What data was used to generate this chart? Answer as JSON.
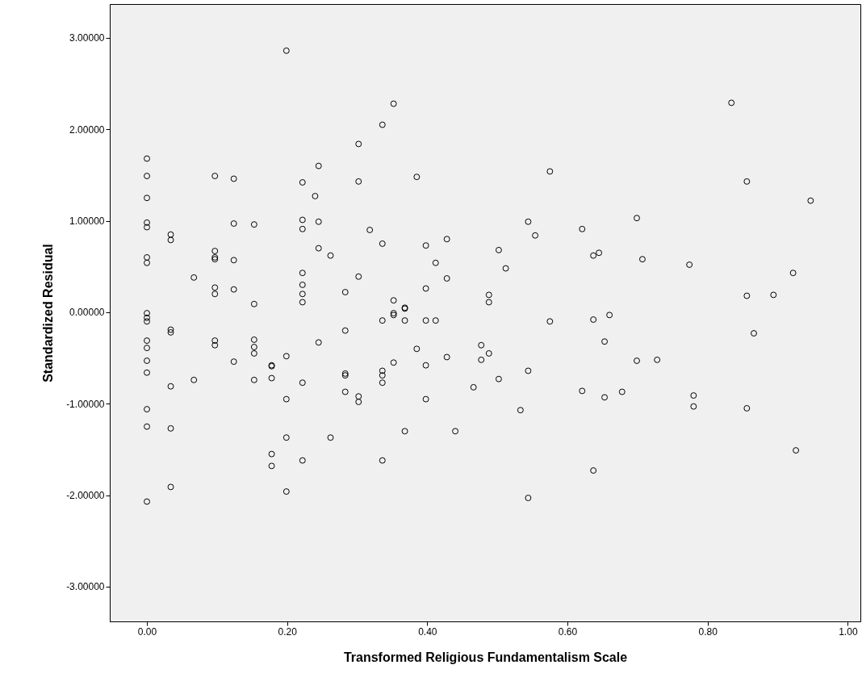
{
  "chart_data": {
    "type": "scatter",
    "xlabel": "Transformed Religious Fundamentalism Scale",
    "ylabel": "Standardized Residual",
    "xlim": [
      -0.053,
      1.018
    ],
    "ylim": [
      -3.38,
      3.37
    ],
    "xticks": [
      {
        "value": 0,
        "label": "0.00"
      },
      {
        "value": 0.2,
        "label": "0.20"
      },
      {
        "value": 0.4,
        "label": "0.40"
      },
      {
        "value": 0.6,
        "label": "0.60"
      },
      {
        "value": 0.8,
        "label": "0.80"
      },
      {
        "value": 1,
        "label": "1.00"
      }
    ],
    "yticks": [
      {
        "value": -3,
        "label": "-3.00000"
      },
      {
        "value": -2,
        "label": "-2.00000"
      },
      {
        "value": -1,
        "label": "-1.00000"
      },
      {
        "value": 0,
        "label": "0.00000"
      },
      {
        "value": 1,
        "label": "1.00000"
      },
      {
        "value": 2,
        "label": "2.00000"
      },
      {
        "value": 3,
        "label": "3.00000"
      }
    ],
    "grid": false,
    "marker": "circle",
    "series": [
      {
        "color": "#000000",
        "x": [
          0,
          0,
          0,
          0,
          0,
          0,
          0,
          0,
          0,
          0,
          0,
          0,
          0,
          0,
          0,
          0,
          0,
          0.034,
          0.034,
          0.034,
          0.034,
          0.034,
          0.034,
          0.034,
          0.067,
          0.067,
          0.097,
          0.097,
          0.097,
          0.097,
          0.097,
          0.097,
          0.097,
          0.097,
          0.124,
          0.124,
          0.124,
          0.124,
          0.124,
          0.153,
          0.153,
          0.153,
          0.153,
          0.153,
          0.153,
          0.178,
          0.178,
          0.178,
          0.178,
          0.178,
          0.199,
          0.199,
          0.199,
          0.199,
          0.199,
          0.222,
          0.222,
          0.222,
          0.222,
          0.222,
          0.222,
          0.222,
          0.222,
          0.222,
          0.24,
          0.245,
          0.245,
          0.245,
          0.245,
          0.262,
          0.262,
          0.283,
          0.283,
          0.283,
          0.283,
          0.283,
          0.302,
          0.302,
          0.302,
          0.302,
          0.302,
          0.318,
          0.336,
          0.336,
          0.336,
          0.336,
          0.336,
          0.336,
          0.336,
          0.352,
          0.352,
          0.352,
          0.352,
          0.352,
          0.368,
          0.368,
          0.368,
          0.368,
          0.385,
          0.385,
          0.398,
          0.398,
          0.398,
          0.398,
          0.398,
          0.412,
          0.412,
          0.428,
          0.428,
          0.428,
          0.44,
          0.466,
          0.477,
          0.477,
          0.488,
          0.488,
          0.488,
          0.502,
          0.502,
          0.512,
          0.533,
          0.544,
          0.544,
          0.544,
          0.554,
          0.575,
          0.575,
          0.621,
          0.621,
          0.637,
          0.637,
          0.637,
          0.645,
          0.653,
          0.653,
          0.66,
          0.678,
          0.699,
          0.699,
          0.707,
          0.728,
          0.774,
          0.78,
          0.78,
          0.834,
          0.856,
          0.856,
          0.856,
          0.866,
          0.894,
          0.922,
          0.926,
          0.947
        ],
        "values": [
          1.68,
          1.49,
          1.25,
          0.98,
          0.93,
          0.6,
          0.54,
          -0.01,
          -0.06,
          -0.1,
          -0.31,
          -0.39,
          -0.53,
          -0.66,
          -1.06,
          -1.25,
          -2.07,
          0.85,
          0.79,
          -0.19,
          -0.22,
          -0.81,
          -1.27,
          -1.91,
          0.38,
          -0.74,
          1.49,
          0.67,
          0.58,
          0.6,
          0.27,
          0.2,
          -0.31,
          -0.36,
          1.46,
          0.97,
          0.57,
          0.25,
          -0.54,
          0.96,
          0.09,
          -0.3,
          -0.38,
          -0.45,
          -0.74,
          -0.58,
          -0.59,
          -0.72,
          -1.55,
          -1.68,
          2.86,
          -0.48,
          -0.95,
          -1.37,
          -1.96,
          1.42,
          1.01,
          0.91,
          0.43,
          0.3,
          0.2,
          0.11,
          -0.77,
          -1.62,
          1.27,
          1.6,
          0.99,
          0.7,
          -0.33,
          0.62,
          -1.37,
          0.22,
          -0.2,
          -0.67,
          -0.69,
          -0.87,
          1.84,
          1.43,
          0.39,
          -0.92,
          -0.98,
          0.9,
          2.05,
          0.75,
          -0.09,
          -0.64,
          -0.69,
          -0.77,
          -1.62,
          2.28,
          0.13,
          -0.01,
          -0.03,
          -0.55,
          0.04,
          0.05,
          -0.09,
          -1.3,
          1.48,
          -0.4,
          0.73,
          0.26,
          -0.09,
          -0.58,
          -0.95,
          0.54,
          -0.09,
          0.8,
          0.37,
          -0.49,
          -1.3,
          -0.82,
          -0.36,
          -0.52,
          0.19,
          0.11,
          -0.45,
          0.68,
          -0.73,
          0.48,
          -1.07,
          0.99,
          -0.64,
          -2.03,
          0.84,
          1.54,
          -0.1,
          0.91,
          -0.86,
          0.62,
          -0.08,
          -1.73,
          0.65,
          -0.32,
          -0.93,
          -0.03,
          -0.87,
          1.03,
          -0.53,
          0.58,
          -0.52,
          0.52,
          -0.91,
          -1.03,
          2.29,
          1.43,
          0.18,
          -1.05,
          -0.23,
          0.19,
          0.43,
          -1.51,
          1.22
        ]
      }
    ]
  }
}
